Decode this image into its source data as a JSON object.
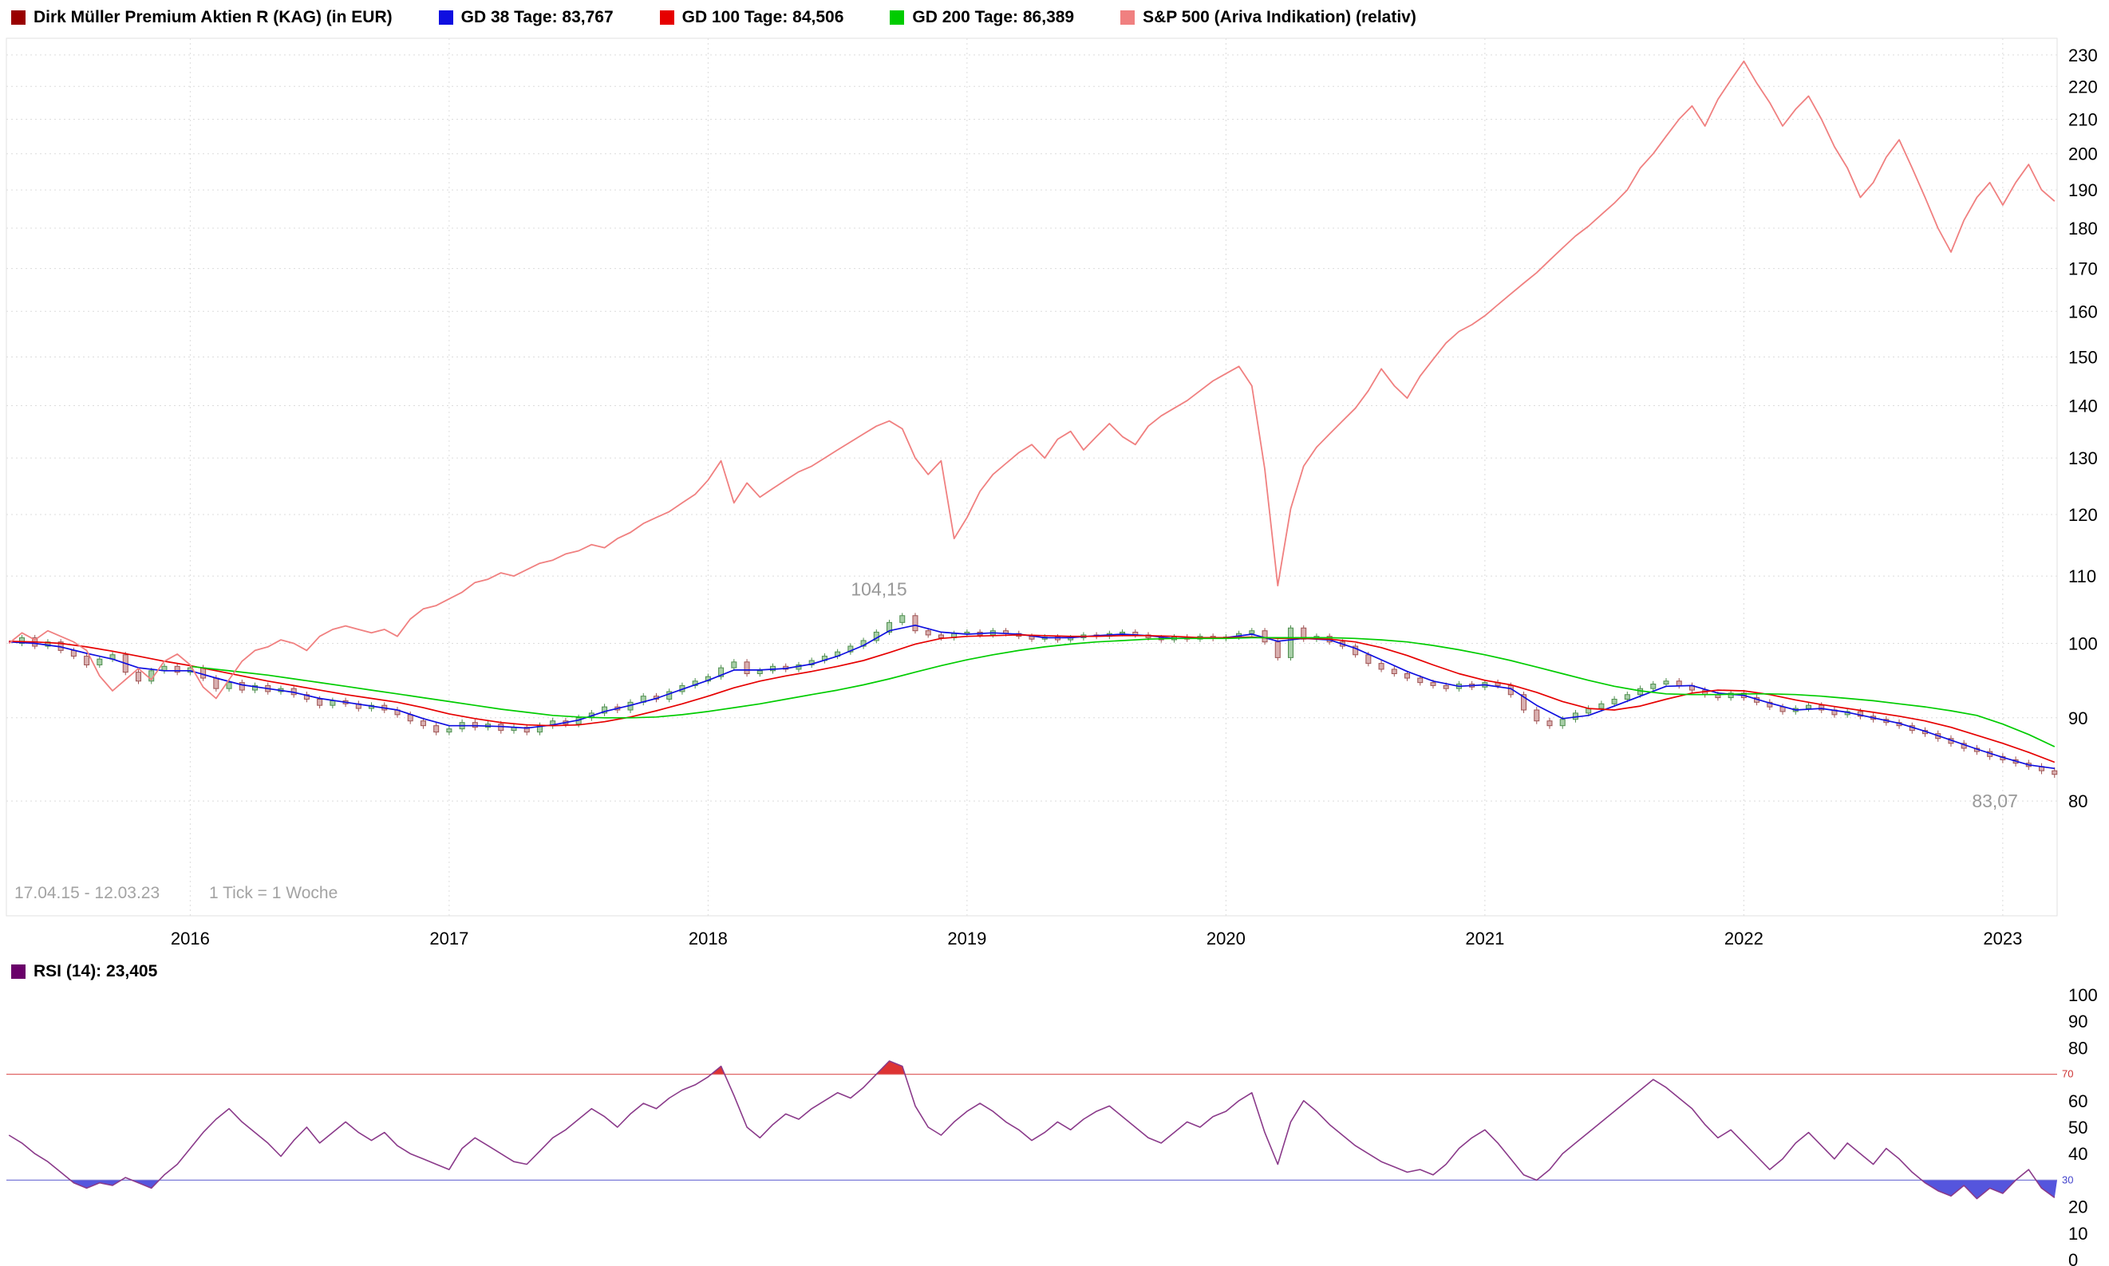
{
  "legend_main": {
    "items": [
      {
        "label": "Dirk Müller Premium Aktien R (KAG) (in EUR)",
        "color": "#990000"
      },
      {
        "label": "GD 38 Tage: 83,767",
        "color": "#0f0fe0"
      },
      {
        "label": "GD 100 Tage: 84,506",
        "color": "#e60000"
      },
      {
        "label": "GD 200 Tage: 86,389",
        "color": "#00cc00"
      },
      {
        "label": "S&P 500 (Ariva Indikation) (relativ)",
        "color": "#f08080"
      }
    ]
  },
  "legend_rsi": {
    "items": [
      {
        "label": "RSI (14): 23,405",
        "color": "#6a006a"
      }
    ]
  },
  "footer": {
    "date_range": "17.04.15 - 12.03.23",
    "tick_info": "1 Tick = 1 Woche"
  },
  "chart_data": [
    {
      "type": "line",
      "title": "Dirk Müller Premium Aktien R (KAG) (in EUR) mit GD38/GD100/GD200 und S&P 500 (relativ)",
      "y_scale": "log",
      "grid": true,
      "legend_position": "top",
      "x_range": [
        2015.29,
        2023.21
      ],
      "y_range": [
        68,
        235.5
      ],
      "y_ticks": [
        80,
        90,
        100,
        110,
        120,
        130,
        140,
        150,
        160,
        170,
        180,
        190,
        200,
        210,
        220,
        230
      ],
      "x_ticks": [
        2016,
        2017,
        2018,
        2019,
        2020,
        2021,
        2022,
        2023
      ],
      "annotations": [
        {
          "text": "104,15",
          "x": 2018.66,
          "y": 107.0,
          "color": "#999999",
          "anchor": "middle"
        },
        {
          "text": "83,07",
          "x": 2022.97,
          "y": 79.3,
          "color": "#999999",
          "anchor": "middle"
        }
      ],
      "series": [
        {
          "name": "Dirk Müller Premium Aktien R (KAG) (in EUR)",
          "style": "candles",
          "up_color": "#4e8e4e",
          "up_fill": "#a8cfa8",
          "down_color": "#9e5252",
          "down_fill": "#d9b0b0",
          "wick_extend": 0.4,
          "x0": 2015.3,
          "dx": 0.05,
          "values": [
            100.0,
            100.8,
            99.6,
            100.2,
            99.0,
            98.2,
            97.0,
            97.8,
            98.4,
            96.0,
            94.8,
            96.2,
            96.8,
            96.0,
            96.6,
            95.2,
            93.8,
            94.6,
            93.6,
            94.2,
            93.4,
            93.8,
            93.0,
            92.4,
            91.6,
            92.2,
            91.8,
            91.2,
            91.6,
            91.0,
            90.4,
            89.6,
            89.0,
            88.2,
            88.6,
            89.4,
            88.8,
            89.2,
            88.4,
            88.8,
            88.2,
            89.0,
            89.6,
            89.2,
            90.0,
            90.6,
            91.4,
            91.0,
            92.0,
            92.8,
            92.4,
            93.4,
            94.2,
            94.8,
            95.4,
            96.6,
            97.4,
            95.8,
            96.2,
            96.8,
            96.4,
            97.0,
            97.6,
            98.2,
            98.8,
            99.6,
            100.4,
            101.6,
            103.0,
            104.0,
            101.8,
            101.2,
            100.8,
            101.4,
            101.6,
            101.2,
            101.8,
            101.4,
            101.0,
            100.6,
            100.9,
            100.5,
            100.8,
            101.2,
            101.0,
            101.4,
            101.6,
            101.2,
            100.8,
            100.5,
            100.9,
            100.6,
            101.0,
            100.7,
            100.9,
            101.4,
            101.8,
            100.2,
            98.0,
            102.2,
            100.6,
            101.0,
            100.2,
            99.6,
            98.4,
            97.2,
            96.4,
            95.8,
            95.2,
            94.6,
            94.2,
            93.8,
            94.4,
            94.0,
            94.6,
            94.2,
            93.0,
            91.0,
            89.6,
            89.0,
            89.8,
            90.6,
            91.2,
            91.8,
            92.4,
            93.0,
            93.8,
            94.4,
            94.8,
            94.2,
            93.6,
            93.0,
            92.6,
            93.2,
            92.6,
            92.0,
            91.4,
            90.8,
            91.2,
            91.6,
            91.0,
            90.4,
            90.8,
            90.2,
            89.8,
            89.4,
            89.0,
            88.4,
            88.0,
            87.4,
            86.8,
            86.2,
            85.8,
            85.2,
            84.8,
            84.4,
            84.0,
            83.5,
            83.07
          ]
        },
        {
          "name": "GD 38 Tage",
          "style": "line",
          "color": "#0f0fe0",
          "width": 1.7,
          "x0": 2015.3,
          "dx": 0.1,
          "values": [
            100.2,
            100.0,
            99.5,
            98.6,
            97.8,
            96.6,
            96.2,
            96.2,
            95.2,
            94.3,
            93.8,
            93.3,
            92.5,
            92.0,
            91.5,
            91.0,
            89.9,
            89.0,
            89.0,
            88.9,
            88.7,
            89.1,
            89.7,
            90.8,
            91.6,
            92.5,
            93.7,
            94.9,
            96.3,
            96.3,
            96.5,
            97.1,
            98.2,
            99.7,
            101.8,
            102.6,
            101.6,
            101.3,
            101.5,
            101.3,
            100.8,
            100.8,
            101.1,
            101.3,
            101.1,
            100.7,
            100.8,
            100.8,
            101.3,
            100.3,
            100.7,
            100.5,
            99.3,
            97.7,
            96.1,
            94.8,
            94.1,
            94.3,
            93.8,
            91.6,
            89.9,
            90.3,
            91.5,
            92.8,
            94.1,
            94.2,
            93.2,
            92.9,
            91.9,
            91.0,
            91.2,
            90.7,
            90.0,
            89.3,
            88.3,
            87.2,
            86.1,
            85.1,
            84.2,
            83.77
          ]
        },
        {
          "name": "GD 100 Tage",
          "style": "line",
          "color": "#e60000",
          "width": 1.7,
          "x0": 2015.3,
          "dx": 0.1,
          "values": [
            100.3,
            100.2,
            100.0,
            99.5,
            98.9,
            98.2,
            97.5,
            96.9,
            96.2,
            95.5,
            94.8,
            94.2,
            93.6,
            93.0,
            92.5,
            92.0,
            91.3,
            90.5,
            89.9,
            89.4,
            89.1,
            89.0,
            89.1,
            89.5,
            90.1,
            90.9,
            91.8,
            92.8,
            93.9,
            94.8,
            95.5,
            96.1,
            96.8,
            97.6,
            98.7,
            99.9,
            100.7,
            101.0,
            101.1,
            101.2,
            101.1,
            101.0,
            101.0,
            101.1,
            101.1,
            101.0,
            100.8,
            100.8,
            100.9,
            100.7,
            100.7,
            100.6,
            100.2,
            99.4,
            98.3,
            97.0,
            95.8,
            94.9,
            94.3,
            93.3,
            92.1,
            91.2,
            91.0,
            91.5,
            92.4,
            93.2,
            93.6,
            93.5,
            93.0,
            92.3,
            91.7,
            91.2,
            90.7,
            90.2,
            89.6,
            88.8,
            87.8,
            86.8,
            85.7,
            84.51
          ]
        },
        {
          "name": "GD 200 Tage",
          "style": "line",
          "color": "#00cc00",
          "width": 1.7,
          "x0": 2016.0,
          "dx": 0.1,
          "values": [
            96.8,
            96.4,
            96.0,
            95.6,
            95.1,
            94.6,
            94.1,
            93.6,
            93.1,
            92.6,
            92.1,
            91.6,
            91.1,
            90.7,
            90.3,
            90.1,
            90.0,
            90.0,
            90.1,
            90.4,
            90.8,
            91.3,
            91.8,
            92.4,
            93.0,
            93.6,
            94.3,
            95.1,
            96.0,
            96.9,
            97.7,
            98.4,
            99.0,
            99.5,
            99.9,
            100.2,
            100.4,
            100.6,
            100.7,
            100.7,
            100.7,
            100.8,
            100.8,
            100.8,
            100.8,
            100.7,
            100.5,
            100.2,
            99.7,
            99.1,
            98.4,
            97.6,
            96.7,
            95.8,
            94.9,
            94.1,
            93.5,
            93.1,
            93.0,
            93.0,
            93.1,
            93.1,
            93.0,
            92.8,
            92.5,
            92.2,
            91.8,
            91.4,
            90.9,
            90.3,
            89.2,
            87.9,
            86.39
          ]
        },
        {
          "name": "S&P 500 (Ariva Indikation) (relativ)",
          "style": "line",
          "color": "#f08080",
          "width": 1.8,
          "x0": 2015.3,
          "dx": 0.05,
          "values": [
            100,
            101.5,
            100.5,
            101.8,
            101.0,
            100.2,
            99.0,
            95.5,
            93.5,
            95.0,
            96.5,
            95.0,
            97.5,
            98.5,
            97.0,
            94.0,
            92.5,
            95.0,
            97.5,
            99.0,
            99.5,
            100.5,
            100.0,
            99.0,
            101.0,
            102.0,
            102.5,
            102.0,
            101.5,
            102.0,
            101.0,
            103.5,
            105.0,
            105.5,
            106.5,
            107.5,
            109.0,
            109.5,
            110.5,
            110.0,
            111.0,
            112.0,
            112.5,
            113.5,
            114.0,
            115.0,
            114.5,
            116.0,
            117.0,
            118.5,
            119.5,
            120.5,
            122.0,
            123.5,
            126.0,
            129.5,
            122.0,
            125.5,
            123.0,
            124.5,
            126.0,
            127.5,
            128.5,
            130.0,
            131.5,
            133.0,
            134.5,
            136.0,
            137.0,
            135.5,
            130.0,
            127.0,
            129.5,
            116.0,
            119.5,
            124.0,
            127.0,
            129.0,
            131.0,
            132.5,
            130.0,
            133.5,
            135.0,
            131.5,
            134.0,
            136.5,
            134.0,
            132.5,
            136.0,
            138.0,
            139.5,
            141.0,
            143.0,
            145.0,
            146.5,
            148.0,
            144.0,
            128.0,
            108.5,
            121.0,
            128.5,
            132.0,
            134.5,
            137.0,
            139.5,
            143.0,
            147.5,
            144.0,
            141.5,
            146.0,
            149.5,
            153.0,
            155.5,
            157.0,
            159.0,
            161.5,
            164.0,
            166.5,
            169.0,
            172.0,
            175.0,
            178.0,
            180.5,
            183.5,
            186.5,
            190.0,
            196.0,
            200.0,
            205.0,
            210.0,
            214.0,
            208.0,
            216.0,
            222.0,
            228.0,
            221.0,
            215.0,
            208.0,
            213.0,
            217.0,
            210.0,
            202.0,
            196.0,
            188.0,
            192.0,
            199.0,
            204.0,
            196.0,
            188.0,
            180.0,
            174.0,
            182.0,
            188.0,
            192.0,
            186.0,
            192.0,
            197.0,
            190.0,
            187.0
          ]
        }
      ]
    },
    {
      "type": "line",
      "title": "RSI (14)",
      "y_scale": "linear",
      "grid": false,
      "x_range": [
        2015.29,
        2023.21
      ],
      "y_range": [
        0,
        100
      ],
      "y_ticks": [
        0,
        10,
        20,
        40,
        50,
        60,
        80,
        90,
        100
      ],
      "threshold_upper": {
        "value": 70,
        "line_color": "#e06666",
        "fill_color": "#dd3333",
        "label": "70",
        "label_color": "#cc3333"
      },
      "threshold_lower": {
        "value": 30,
        "line_color": "#7a7ad8",
        "fill_color": "#5555dd",
        "label": "30",
        "label_color": "#4444cc"
      },
      "series": [
        {
          "name": "RSI (14)",
          "style": "line",
          "color": "#8a3a8a",
          "width": 1.6,
          "x0": 2015.3,
          "dx": 0.05,
          "values": [
            47,
            44,
            40,
            37,
            33,
            29,
            27,
            29,
            28,
            31,
            29,
            27,
            32,
            36,
            42,
            48,
            53,
            57,
            52,
            48,
            44,
            39,
            45,
            50,
            44,
            48,
            52,
            48,
            45,
            48,
            43,
            40,
            38,
            36,
            34,
            42,
            46,
            43,
            40,
            37,
            36,
            41,
            46,
            49,
            53,
            57,
            54,
            50,
            55,
            59,
            57,
            61,
            64,
            66,
            69,
            73,
            62,
            50,
            46,
            51,
            55,
            53,
            57,
            60,
            63,
            61,
            65,
            70,
            75,
            73,
            58,
            50,
            47,
            52,
            56,
            59,
            56,
            52,
            49,
            45,
            48,
            52,
            49,
            53,
            56,
            58,
            54,
            50,
            46,
            44,
            48,
            52,
            50,
            54,
            56,
            60,
            63,
            48,
            36,
            52,
            60,
            56,
            51,
            47,
            43,
            40,
            37,
            35,
            33,
            34,
            32,
            36,
            42,
            46,
            49,
            44,
            38,
            32,
            30,
            34,
            40,
            44,
            48,
            52,
            56,
            60,
            64,
            68,
            65,
            61,
            57,
            51,
            46,
            49,
            44,
            39,
            34,
            38,
            44,
            48,
            43,
            38,
            44,
            40,
            36,
            42,
            38,
            33,
            29,
            26,
            24,
            28,
            23,
            27,
            25,
            30,
            34,
            27,
            23.4
          ]
        }
      ]
    }
  ]
}
